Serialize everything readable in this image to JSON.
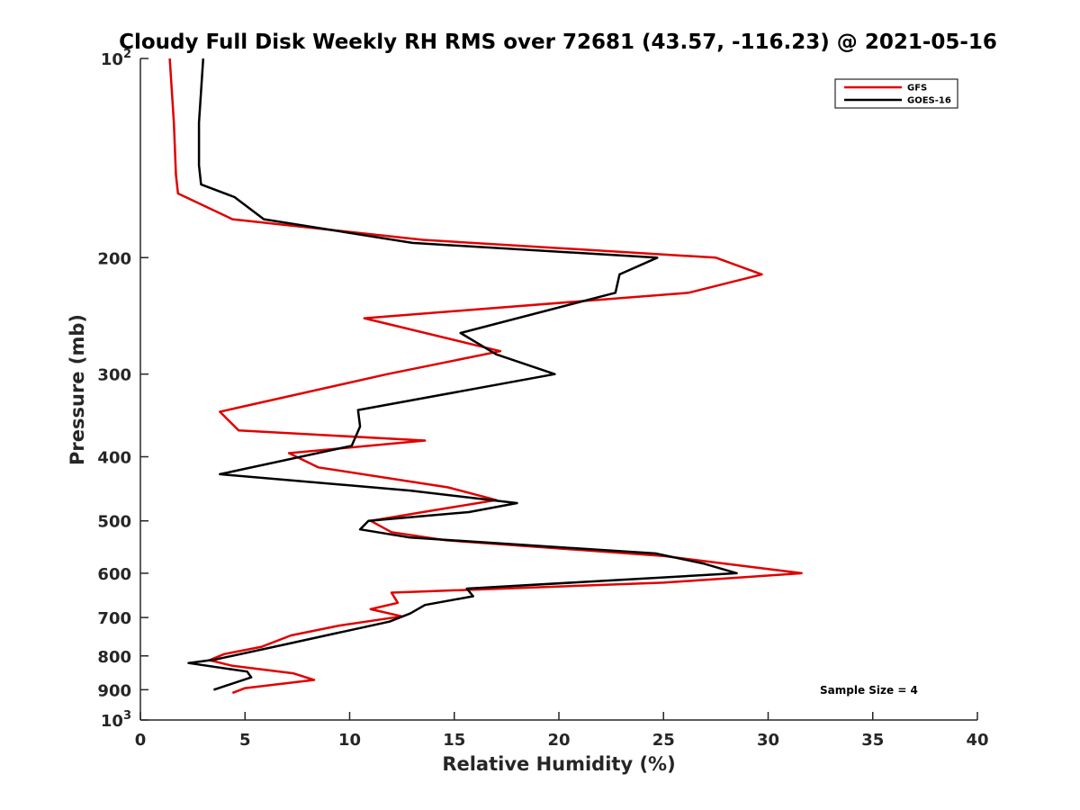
{
  "chart_data": {
    "type": "line",
    "title": "Cloudy Full Disk Weekly RH RMS over 72681 (43.57, -116.23) @ 2021-05-16",
    "xlabel": "Relative Humidity (%)",
    "ylabel": "Pressure (mb)",
    "xlim": [
      0,
      40
    ],
    "ylim": [
      100,
      1000
    ],
    "y_scale": "log",
    "y_reversed": true,
    "grid": false,
    "legend_position": "top-right",
    "annotation": "Sample Size = 4",
    "x_ticks": [
      {
        "value": 0,
        "label": "0"
      },
      {
        "value": 5,
        "label": "5"
      },
      {
        "value": 10,
        "label": "10"
      },
      {
        "value": 15,
        "label": "15"
      },
      {
        "value": 20,
        "label": "20"
      },
      {
        "value": 25,
        "label": "25"
      },
      {
        "value": 30,
        "label": "30"
      },
      {
        "value": 35,
        "label": "35"
      },
      {
        "value": 40,
        "label": "40"
      }
    ],
    "y_ticks": [
      {
        "value": 100,
        "base": "10",
        "exp": "2"
      },
      {
        "value": 200,
        "label": "200"
      },
      {
        "value": 300,
        "label": "300"
      },
      {
        "value": 400,
        "label": "400"
      },
      {
        "value": 500,
        "label": "500"
      },
      {
        "value": 600,
        "label": "600"
      },
      {
        "value": 700,
        "label": "700"
      },
      {
        "value": 800,
        "label": "800"
      },
      {
        "value": 900,
        "label": "900"
      },
      {
        "value": 1000,
        "base": "10",
        "exp": "3"
      }
    ],
    "series": [
      {
        "name": "GFS",
        "color": "#e00000",
        "points": [
          [
            1.4,
            100
          ],
          [
            1.6,
            125
          ],
          [
            1.7,
            150
          ],
          [
            1.8,
            160
          ],
          [
            4.4,
            175
          ],
          [
            13.5,
            188
          ],
          [
            27.5,
            200
          ],
          [
            29.7,
            212
          ],
          [
            26.2,
            226
          ],
          [
            10.7,
            247
          ],
          [
            17.2,
            277
          ],
          [
            11.8,
            300
          ],
          [
            3.8,
            342
          ],
          [
            4.7,
            365
          ],
          [
            13.6,
            378
          ],
          [
            7.1,
            395
          ],
          [
            8.5,
            415
          ],
          [
            14.7,
            445
          ],
          [
            17.0,
            465
          ],
          [
            13.5,
            485
          ],
          [
            11.0,
            500
          ],
          [
            12.0,
            520
          ],
          [
            14.6,
            535
          ],
          [
            25.0,
            565
          ],
          [
            31.6,
            600
          ],
          [
            25.0,
            620
          ],
          [
            12.0,
            642
          ],
          [
            12.3,
            665
          ],
          [
            11.0,
            680
          ],
          [
            12.5,
            697
          ],
          [
            9.5,
            720
          ],
          [
            7.2,
            745
          ],
          [
            5.8,
            775
          ],
          [
            4.0,
            795
          ],
          [
            3.3,
            812
          ],
          [
            4.4,
            828
          ],
          [
            7.3,
            850
          ],
          [
            8.3,
            870
          ],
          [
            5.0,
            895
          ],
          [
            4.4,
            910
          ]
        ]
      },
      {
        "name": "GOES-16",
        "color": "#000000",
        "points": [
          [
            3.0,
            100
          ],
          [
            2.8,
            125
          ],
          [
            2.8,
            145
          ],
          [
            2.9,
            155
          ],
          [
            4.5,
            162
          ],
          [
            5.9,
            175
          ],
          [
            13.0,
            190
          ],
          [
            24.7,
            200
          ],
          [
            22.9,
            212
          ],
          [
            22.7,
            226
          ],
          [
            15.3,
            260
          ],
          [
            17.0,
            280
          ],
          [
            19.8,
            300
          ],
          [
            10.4,
            340
          ],
          [
            10.5,
            360
          ],
          [
            10.1,
            385
          ],
          [
            3.8,
            425
          ],
          [
            12.9,
            450
          ],
          [
            18.0,
            470
          ],
          [
            15.7,
            485
          ],
          [
            10.9,
            500
          ],
          [
            10.5,
            515
          ],
          [
            12.9,
            530
          ],
          [
            24.6,
            560
          ],
          [
            26.9,
            580
          ],
          [
            28.5,
            600
          ],
          [
            15.6,
            633
          ],
          [
            15.9,
            650
          ],
          [
            13.6,
            670
          ],
          [
            12.9,
            690
          ],
          [
            11.9,
            710
          ],
          [
            9.3,
            740
          ],
          [
            6.8,
            770
          ],
          [
            3.6,
            810
          ],
          [
            2.3,
            820
          ],
          [
            5.1,
            845
          ],
          [
            5.3,
            862
          ],
          [
            3.5,
            900
          ]
        ]
      }
    ]
  }
}
